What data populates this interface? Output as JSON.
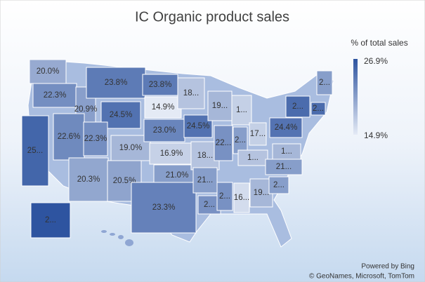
{
  "chart_data": {
    "type": "map",
    "title": "IC Organic product sales",
    "legend_title": "% of total sales",
    "scale": {
      "min": {
        "value": 14.9,
        "label": "14.9%"
      },
      "max": {
        "value": 26.9,
        "label": "26.9%"
      }
    },
    "color_min": "#e4eaf5",
    "color_max": "#2e54a0",
    "regions": [
      {
        "label": "20.0%",
        "value": 20.0
      },
      {
        "label": "22.3%",
        "value": 22.3
      },
      {
        "label": "25...",
        "value": 25.5
      },
      {
        "label": "20.9%",
        "value": 20.9
      },
      {
        "label": "23.8%",
        "value": 23.8
      },
      {
        "label": "24.5%",
        "value": 24.5
      },
      {
        "label": "22.6%",
        "value": 22.6
      },
      {
        "label": "22.3%",
        "value": 22.3
      },
      {
        "label": "19.0%",
        "value": 19.0
      },
      {
        "label": "20.3%",
        "value": 20.3
      },
      {
        "label": "20.5%",
        "value": 20.5
      },
      {
        "label": "23.8%",
        "value": 23.8
      },
      {
        "label": "14.9%",
        "value": 14.9
      },
      {
        "label": "23.0%",
        "value": 23.0
      },
      {
        "label": "16.9%",
        "value": 16.9
      },
      {
        "label": "21.0%",
        "value": 21.0
      },
      {
        "label": "23.3%",
        "value": 23.3
      },
      {
        "label": "18...",
        "value": 18
      },
      {
        "label": "24.5%",
        "value": 24.5
      },
      {
        "label": "18...",
        "value": 18
      },
      {
        "label": "21...",
        "value": 21
      },
      {
        "label": "2...",
        "value": 22
      },
      {
        "label": "19...",
        "value": 19
      },
      {
        "label": "22...",
        "value": 22
      },
      {
        "label": "2...",
        "value": 22
      },
      {
        "label": "1...",
        "value": 17
      },
      {
        "label": "2...",
        "value": 21
      },
      {
        "label": "1...",
        "value": 18
      },
      {
        "label": "16...",
        "value": 16
      },
      {
        "label": "19...",
        "value": 19
      },
      {
        "label": "17...",
        "value": 17
      },
      {
        "label": "2...",
        "value": 21
      },
      {
        "label": "21...",
        "value": 21
      },
      {
        "label": "1...",
        "value": 19
      },
      {
        "label": "24.4%",
        "value": 24.4
      },
      {
        "label": "2...",
        "value": 25
      },
      {
        "label": "2...",
        "value": 25
      },
      {
        "label": "2...",
        "value": 21
      },
      {
        "label": "2...",
        "value": 26.9
      }
    ],
    "credits": [
      "Powered by Bing",
      "© GeoNames, Microsoft, TomTom"
    ]
  }
}
